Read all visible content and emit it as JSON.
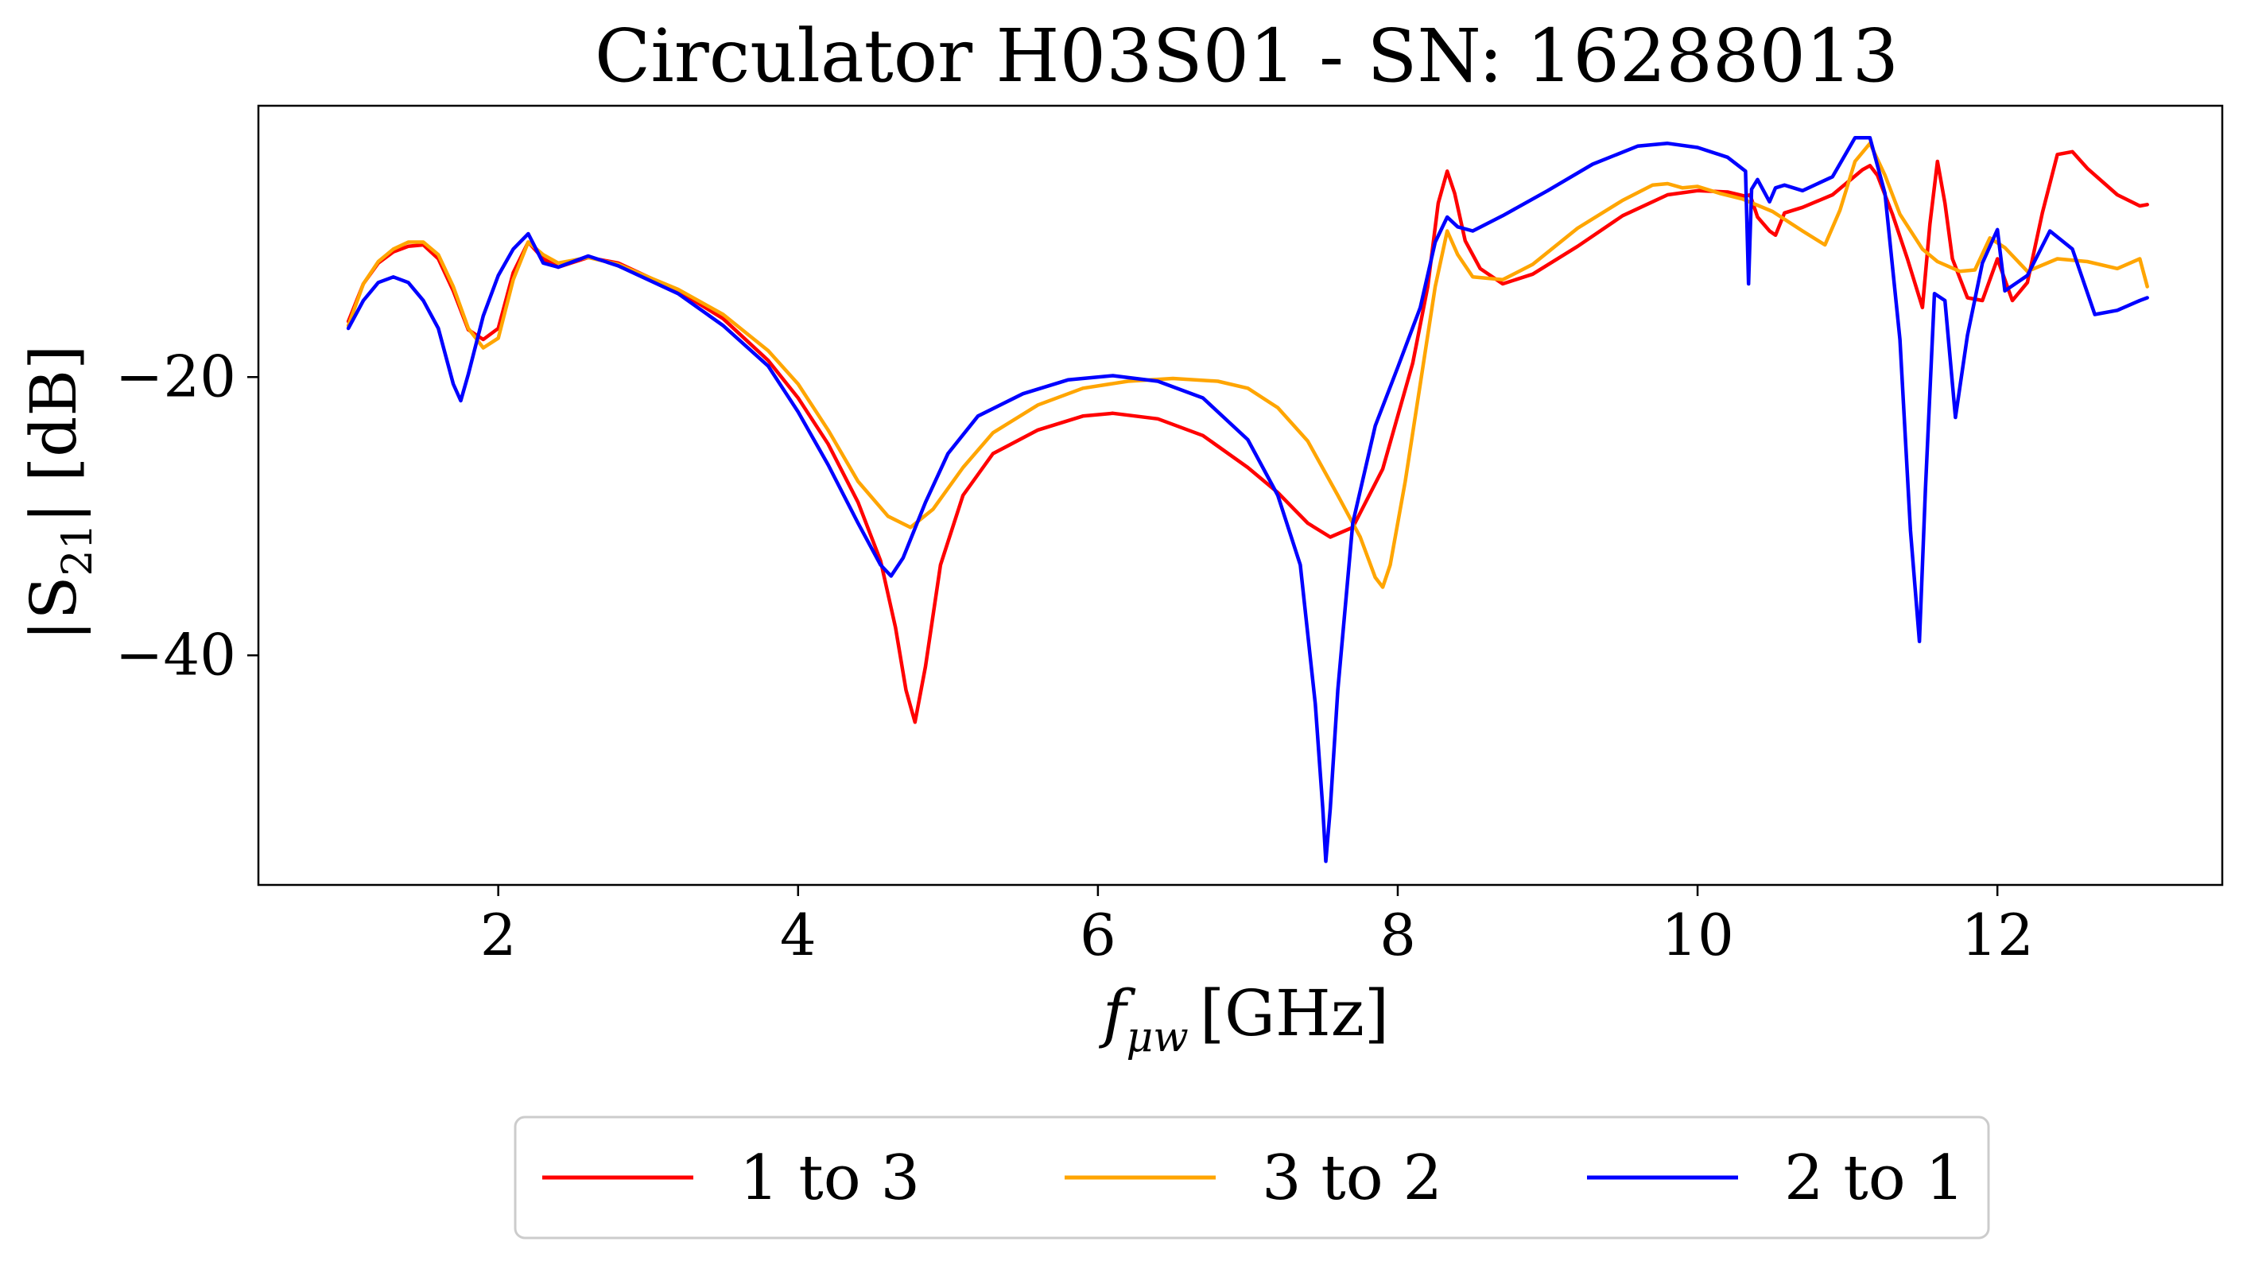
{
  "chart_data": {
    "type": "line",
    "title": "Circulator H03S01 - SN: 16288013",
    "xlabel_var": "f",
    "xlabel_sub": "μw",
    "xlabel_unit": "[GHz]",
    "ylabel_var": "|S",
    "ylabel_sub": "21",
    "ylabel_unit": "| [dB]",
    "xlim": [
      0.4,
      13.5
    ],
    "ylim": [
      -56.5,
      -0.5
    ],
    "xticks": [
      2,
      4,
      6,
      8,
      10,
      12
    ],
    "xtick_labels": [
      "2",
      "4",
      "6",
      "8",
      "10",
      "12"
    ],
    "yticks": [
      -20,
      -40
    ],
    "ytick_labels": [
      "−20",
      "−40"
    ],
    "grid": false,
    "legend_position": "below-center",
    "series": [
      {
        "name": "1 to 3",
        "color": "#ff0000",
        "x": [
          1.0,
          1.1,
          1.2,
          1.3,
          1.4,
          1.5,
          1.6,
          1.7,
          1.8,
          1.9,
          2.0,
          2.1,
          2.2,
          2.3,
          2.4,
          2.6,
          2.8,
          3.0,
          3.2,
          3.5,
          3.8,
          4.0,
          4.2,
          4.4,
          4.55,
          4.65,
          4.72,
          4.78,
          4.85,
          4.95,
          5.1,
          5.3,
          5.6,
          5.9,
          6.1,
          6.4,
          6.7,
          7.0,
          7.2,
          7.4,
          7.55,
          7.7,
          7.9,
          8.1,
          8.2,
          8.27,
          8.33,
          8.38,
          8.45,
          8.55,
          8.7,
          8.9,
          9.2,
          9.5,
          9.8,
          10.0,
          10.2,
          10.32,
          10.35,
          10.4,
          10.48,
          10.52,
          10.58,
          10.7,
          10.9,
          11.1,
          11.15,
          11.2,
          11.3,
          11.4,
          11.5,
          11.55,
          11.6,
          11.65,
          11.7,
          11.8,
          11.9,
          12.0,
          12.1,
          12.2,
          12.3,
          12.4,
          12.5,
          12.6,
          12.8,
          12.95,
          13.0
        ],
        "y": [
          -16,
          -13.3,
          -11.8,
          -11,
          -10.6,
          -10.5,
          -11.5,
          -13.8,
          -16.6,
          -17.3,
          -16.5,
          -12.5,
          -10.3,
          -11.5,
          -12.1,
          -11.4,
          -11.8,
          -12.8,
          -13.8,
          -15.8,
          -18.8,
          -21.5,
          -24.8,
          -29,
          -33.2,
          -38,
          -42.5,
          -44.8,
          -40.8,
          -33.5,
          -28.5,
          -25.5,
          -23.8,
          -22.8,
          -22.6,
          -23,
          -24.2,
          -26.5,
          -28.3,
          -30.5,
          -31.5,
          -30.8,
          -26.6,
          -19,
          -13.5,
          -7.5,
          -5.2,
          -6.8,
          -10.2,
          -12.2,
          -13.3,
          -12.6,
          -10.6,
          -8.4,
          -6.9,
          -6.6,
          -6.7,
          -7,
          -6.9,
          -8.5,
          -9.5,
          -9.8,
          -8.2,
          -7.8,
          -6.9,
          -5.1,
          -4.8,
          -5.5,
          -8.3,
          -11.5,
          -15,
          -9,
          -4.5,
          -7.5,
          -11.5,
          -14.3,
          -14.5,
          -11.5,
          -14.5,
          -13.2,
          -8.2,
          -4,
          -3.8,
          -5,
          -6.9,
          -7.7,
          -7.6
        ]
      },
      {
        "name": "3 to 2",
        "color": "#ffa500",
        "x": [
          1.0,
          1.1,
          1.2,
          1.3,
          1.4,
          1.5,
          1.6,
          1.7,
          1.8,
          1.9,
          2.0,
          2.1,
          2.2,
          2.3,
          2.4,
          2.6,
          2.8,
          3.0,
          3.2,
          3.5,
          3.8,
          4.0,
          4.2,
          4.4,
          4.6,
          4.75,
          4.9,
          5.1,
          5.3,
          5.6,
          5.9,
          6.2,
          6.5,
          6.8,
          7.0,
          7.2,
          7.4,
          7.6,
          7.75,
          7.85,
          7.9,
          7.95,
          8.05,
          8.15,
          8.25,
          8.33,
          8.4,
          8.5,
          8.7,
          8.9,
          9.2,
          9.5,
          9.7,
          9.8,
          9.9,
          10.0,
          10.15,
          10.3,
          10.5,
          10.7,
          10.85,
          10.95,
          11.05,
          11.15,
          11.25,
          11.35,
          11.5,
          11.6,
          11.75,
          11.85,
          11.95,
          12.05,
          12.2,
          12.4,
          12.6,
          12.8,
          12.95,
          13.0
        ],
        "y": [
          -16.3,
          -13.3,
          -11.7,
          -10.8,
          -10.3,
          -10.3,
          -11.2,
          -13.5,
          -16.5,
          -17.9,
          -17.2,
          -13,
          -10.3,
          -11.2,
          -11.8,
          -11.4,
          -11.9,
          -12.8,
          -13.7,
          -15.5,
          -18.1,
          -20.5,
          -23.8,
          -27.5,
          -30,
          -30.8,
          -29.5,
          -26.5,
          -24,
          -22,
          -20.8,
          -20.3,
          -20.1,
          -20.3,
          -20.8,
          -22.2,
          -24.6,
          -28.5,
          -31.5,
          -34.4,
          -35.1,
          -33.5,
          -27.5,
          -20.5,
          -13.5,
          -9.5,
          -11.2,
          -12.8,
          -13,
          -11.9,
          -9.3,
          -7.3,
          -6.2,
          -6.1,
          -6.4,
          -6.3,
          -6.8,
          -7.2,
          -8.1,
          -9.5,
          -10.5,
          -8,
          -4.5,
          -3.2,
          -5.5,
          -8.3,
          -10.8,
          -11.7,
          -12.4,
          -12.3,
          -10,
          -10.7,
          -12.4,
          -11.5,
          -11.7,
          -12.2,
          -11.5,
          -13.5
        ]
      },
      {
        "name": "2 to 1",
        "color": "#0000ff",
        "x": [
          1.0,
          1.1,
          1.2,
          1.3,
          1.4,
          1.5,
          1.6,
          1.7,
          1.75,
          1.8,
          1.9,
          2.0,
          2.1,
          2.2,
          2.3,
          2.4,
          2.6,
          2.8,
          3.0,
          3.2,
          3.5,
          3.8,
          4.0,
          4.2,
          4.4,
          4.55,
          4.62,
          4.7,
          4.85,
          5.0,
          5.2,
          5.5,
          5.8,
          6.1,
          6.4,
          6.7,
          7.0,
          7.2,
          7.35,
          7.45,
          7.5,
          7.52,
          7.55,
          7.6,
          7.7,
          7.85,
          8.0,
          8.15,
          8.25,
          8.33,
          8.4,
          8.5,
          8.7,
          9.0,
          9.3,
          9.6,
          9.8,
          10.0,
          10.2,
          10.32,
          10.34,
          10.36,
          10.4,
          10.48,
          10.52,
          10.58,
          10.7,
          10.9,
          11.05,
          11.15,
          11.25,
          11.35,
          11.42,
          11.48,
          11.52,
          11.58,
          11.65,
          11.72,
          11.8,
          11.9,
          12.0,
          12.05,
          12.2,
          12.35,
          12.5,
          12.65,
          12.8,
          12.95,
          13.0
        ],
        "y": [
          -16.5,
          -14.5,
          -13.2,
          -12.8,
          -13.2,
          -14.5,
          -16.5,
          -20.5,
          -21.7,
          -19.8,
          -15.6,
          -12.7,
          -10.8,
          -9.7,
          -11.8,
          -12.1,
          -11.3,
          -12,
          -13,
          -14,
          -16.3,
          -19.2,
          -22.5,
          -26.3,
          -30.5,
          -33.5,
          -34.3,
          -33,
          -29,
          -25.5,
          -22.8,
          -21.2,
          -20.2,
          -19.9,
          -20.3,
          -21.5,
          -24.5,
          -28.5,
          -33.5,
          -43.5,
          -51,
          -54.8,
          -51,
          -42.5,
          -30.5,
          -23.5,
          -19.3,
          -15,
          -10.3,
          -8.5,
          -9.2,
          -9.5,
          -8.4,
          -6.6,
          -4.7,
          -3.4,
          -3.2,
          -3.5,
          -4.2,
          -5.2,
          -13.3,
          -6.5,
          -5.8,
          -7.4,
          -6.4,
          -6.2,
          -6.6,
          -5.6,
          -2.8,
          -2.8,
          -6.8,
          -17.3,
          -31,
          -39,
          -28,
          -14,
          -14.5,
          -22.9,
          -17,
          -11.8,
          -9.4,
          -13.8,
          -12.7,
          -9.5,
          -10.8,
          -15.5,
          -15.2,
          -14.5,
          -14.3
        ]
      }
    ]
  }
}
